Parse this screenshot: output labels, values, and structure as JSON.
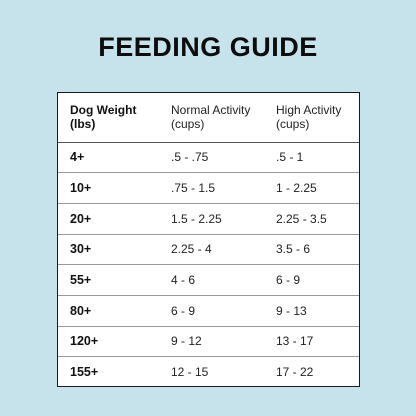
{
  "title": "FEEDING GUIDE",
  "table": {
    "headers": [
      {
        "line1": "Dog Weight",
        "line2": "(lbs)"
      },
      {
        "line1": "Normal Activity",
        "line2": "(cups)"
      },
      {
        "line1": "High Activity",
        "line2": "(cups)"
      }
    ],
    "rows": [
      {
        "weight": "4+",
        "normal": ".5 - .75",
        "high": ".5 - 1"
      },
      {
        "weight": "10+",
        "normal": ".75 - 1.5",
        "high": "1 - 2.25"
      },
      {
        "weight": "20+",
        "normal": "1.5 - 2.25",
        "high": "2.25 - 3.5"
      },
      {
        "weight": "30+",
        "normal": "2.25 - 4",
        "high": "3.5 - 6"
      },
      {
        "weight": "55+",
        "normal": "4 - 6",
        "high": "6 - 9"
      },
      {
        "weight": "80+",
        "normal": "6 - 9",
        "high": "9 - 13"
      },
      {
        "weight": "120+",
        "normal": "9 - 12",
        "high": "13 - 17"
      },
      {
        "weight": "155+",
        "normal": "12 - 15",
        "high": "17 - 22"
      }
    ]
  }
}
